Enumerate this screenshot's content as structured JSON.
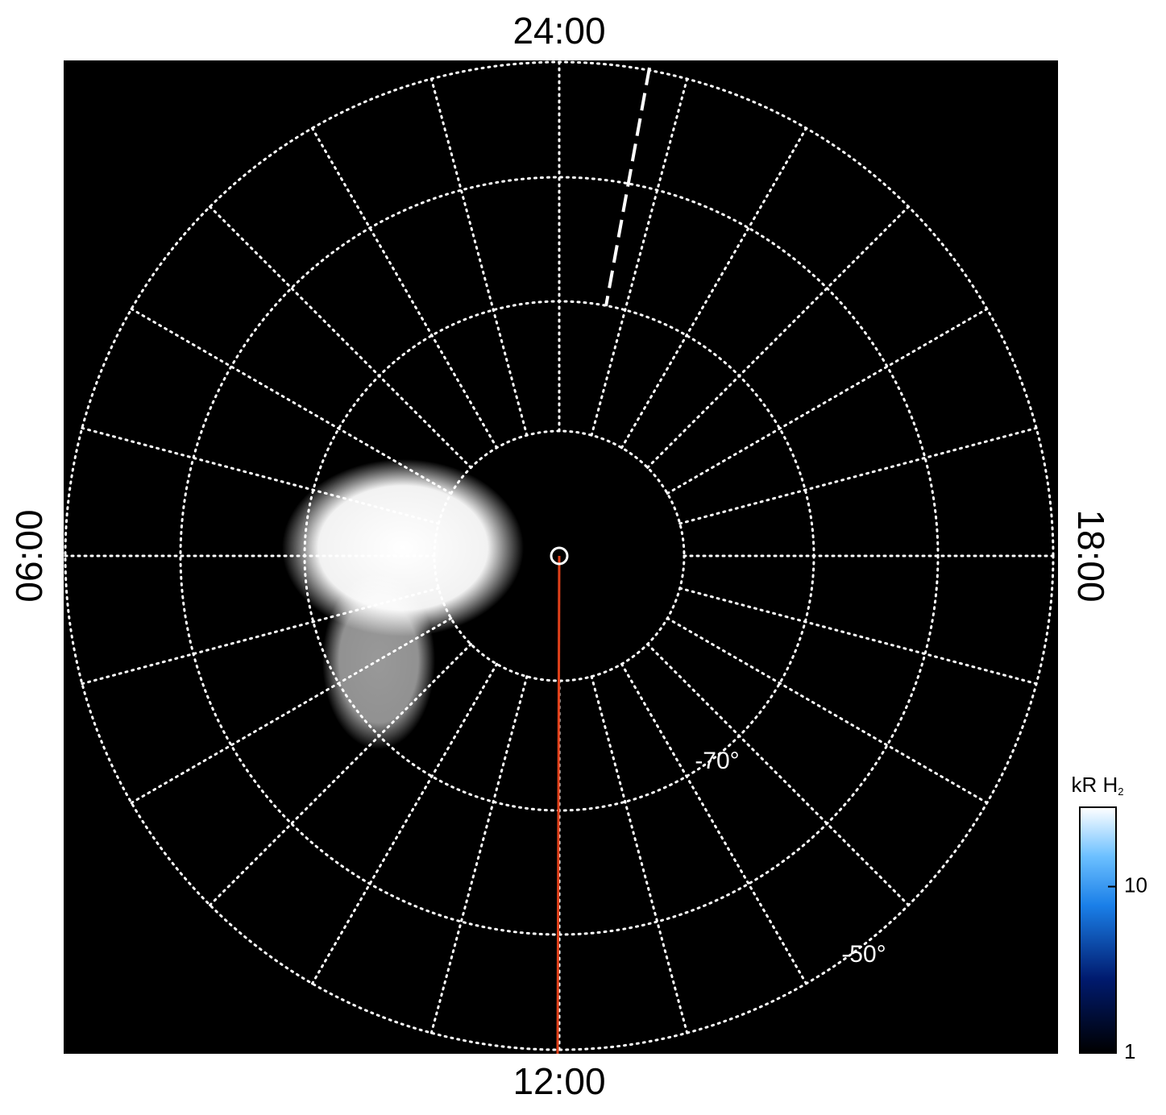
{
  "chart_data": {
    "type": "polar-map",
    "local_time_labels": {
      "top": "24:00",
      "bottom": "12:00",
      "left": "06:00",
      "right": "18:00"
    },
    "latitude_labels": [
      "-70°",
      "-50°"
    ],
    "colorbar": {
      "label": "kR H",
      "label_subscript": "2",
      "scale": "log",
      "lim": [
        1,
        30
      ],
      "ticks": [
        1,
        10
      ]
    }
  }
}
